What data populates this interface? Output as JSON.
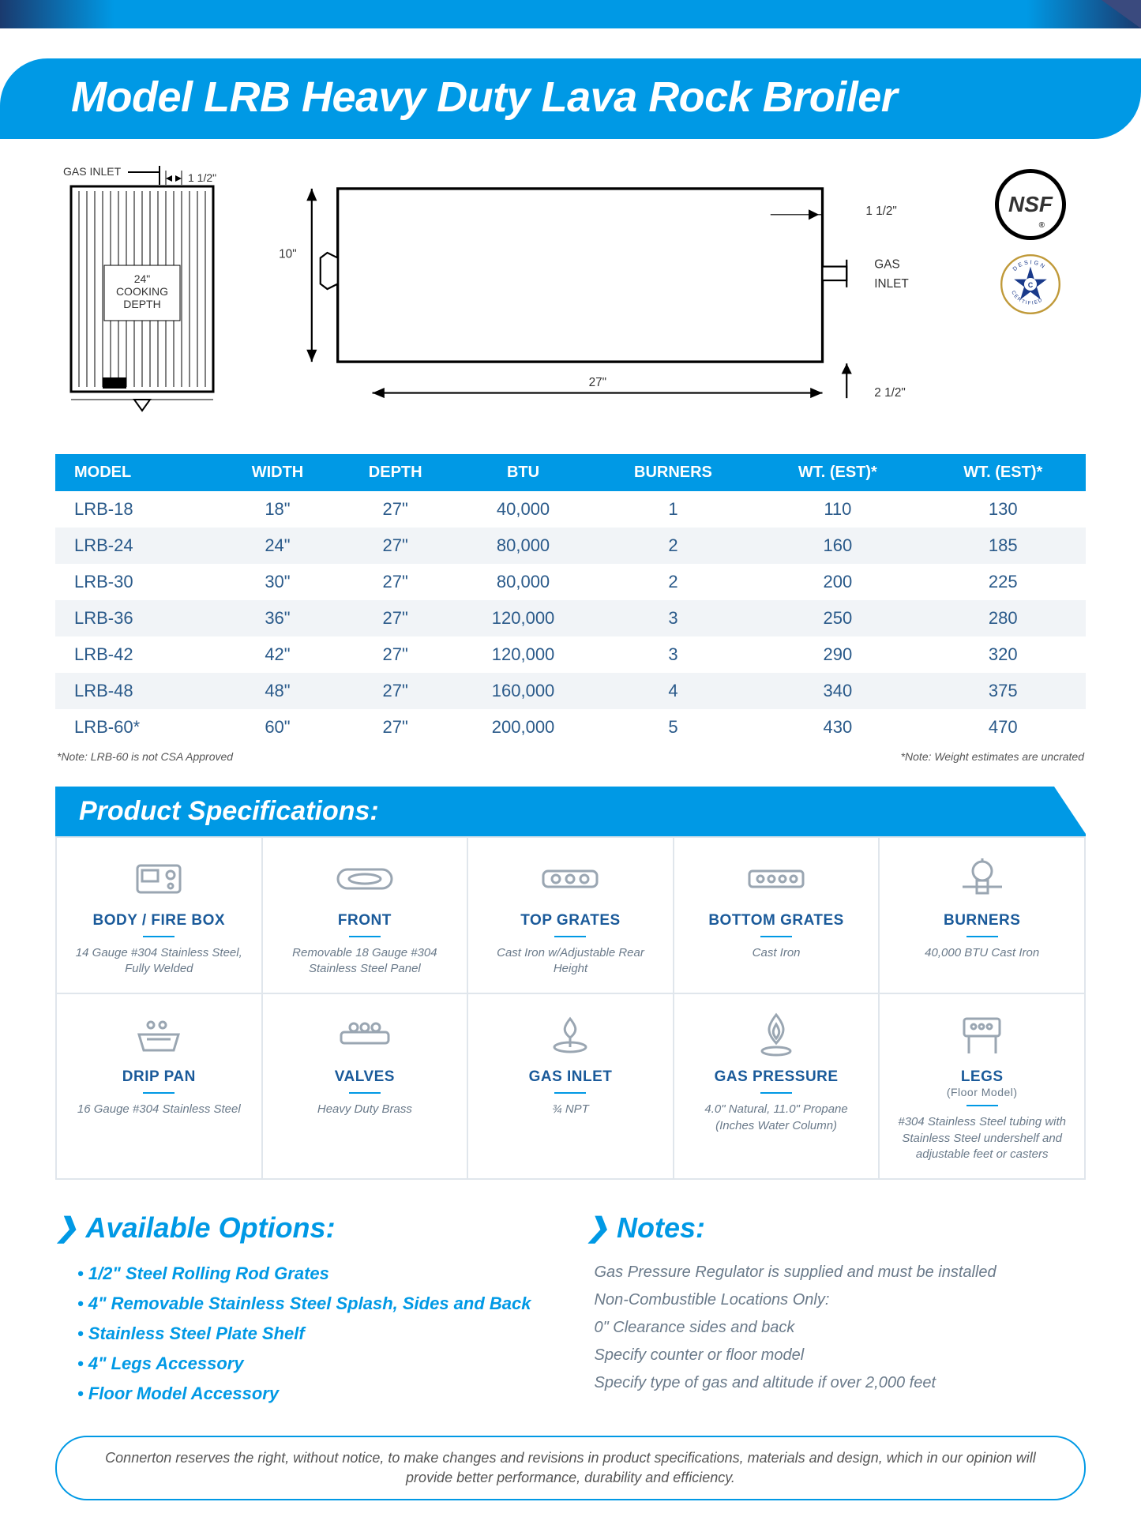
{
  "header": {
    "title": "Model LRB Heavy Duty Lava Rock  Broiler",
    "stripe_color": "#0099e5"
  },
  "diagrams": {
    "top_view": {
      "gas_inlet_label": "GAS INLET",
      "inlet_offset": "1 1/2\"",
      "cooking_depth_label": "24\"\nCOOKING\nDEPTH"
    },
    "side_view": {
      "height_label": "10\"",
      "width_label": "27\"",
      "inlet_top_offset": "1 1/2\"",
      "inlet_right_offset": "2 1/2\"",
      "gas_inlet_label": "GAS\nINLET"
    }
  },
  "cert_logos": {
    "nsf": "NSF",
    "csa_top": "DESIGN",
    "csa_bottom": "CERTIFIED"
  },
  "spec_table": {
    "columns": [
      "MODEL",
      "WIDTH",
      "DEPTH",
      "BTU",
      "BURNERS",
      "WT. (EST)*",
      "WT. (EST)*"
    ],
    "rows": [
      [
        "LRB-18",
        "18\"",
        "27\"",
        "40,000",
        "1",
        "110",
        "130"
      ],
      [
        "LRB-24",
        "24\"",
        "27\"",
        "80,000",
        "2",
        "160",
        "185"
      ],
      [
        "LRB-30",
        "30\"",
        "27\"",
        "80,000",
        "2",
        "200",
        "225"
      ],
      [
        "LRB-36",
        "36\"",
        "27\"",
        "120,000",
        "3",
        "250",
        "280"
      ],
      [
        "LRB-42",
        "42\"",
        "27\"",
        "120,000",
        "3",
        "290",
        "320"
      ],
      [
        "LRB-48",
        "48\"",
        "27\"",
        "160,000",
        "4",
        "340",
        "375"
      ],
      [
        "LRB-60*",
        "60\"",
        "27\"",
        "200,000",
        "5",
        "430",
        "470"
      ]
    ],
    "note_left": "*Note: LRB-60 is not CSA Approved",
    "note_right": "*Note: Weight estimates are uncrated"
  },
  "product_specs": {
    "heading": "Product Specifications:",
    "items": [
      {
        "title": "BODY / FIRE BOX",
        "subtitle": "",
        "desc": "14 Gauge #304 Stainless Steel, Fully Welded",
        "icon": "firebox"
      },
      {
        "title": "FRONT",
        "subtitle": "",
        "desc": "Removable 18 Gauge #304 Stainless Steel Panel",
        "icon": "front"
      },
      {
        "title": "TOP GRATES",
        "subtitle": "",
        "desc": "Cast Iron w/Adjustable Rear Height",
        "icon": "topgrates"
      },
      {
        "title": "BOTTOM GRATES",
        "subtitle": "",
        "desc": "Cast Iron",
        "icon": "bottomgrates"
      },
      {
        "title": "BURNERS",
        "subtitle": "",
        "desc": "40,000 BTU Cast Iron",
        "icon": "burners"
      },
      {
        "title": "DRIP PAN",
        "subtitle": "",
        "desc": "16 Gauge #304 Stainless Steel",
        "icon": "drippan"
      },
      {
        "title": "VALVES",
        "subtitle": "",
        "desc": "Heavy Duty Brass",
        "icon": "valves"
      },
      {
        "title": "GAS INLET",
        "subtitle": "",
        "desc": "¾ NPT",
        "icon": "gasinlet"
      },
      {
        "title": "GAS PRESSURE",
        "subtitle": "",
        "desc": "4.0\" Natural, 11.0\" Propane (Inches Water Column)",
        "icon": "gaspressure"
      },
      {
        "title": "LEGS",
        "subtitle": "(Floor Model)",
        "desc": "#304 Stainless Steel tubing with Stainless Steel undershelf and adjustable feet or casters",
        "icon": "legs"
      }
    ]
  },
  "options": {
    "heading": "Available Options:",
    "items": [
      "1/2\" Steel Rolling Rod Grates",
      "4\" Removable Stainless Steel Splash, Sides and Back",
      "Stainless Steel Plate Shelf",
      "4\" Legs Accessory",
      "Floor Model Accessory"
    ]
  },
  "notes": {
    "heading": "Notes:",
    "items": [
      "Gas Pressure Regulator is supplied and must be installed",
      "Non-Combustible Locations Only:",
      "0\" Clearance sides and back",
      "Specify counter or floor model",
      "Specify type of gas and altitude if over 2,000 feet"
    ]
  },
  "disclaimer": "Connerton reserves the right, without notice, to make changes and revisions in product specifications, materials and design, which in our opinion will provide better performance, durability and efficiency.",
  "colors": {
    "primary": "#0099e5",
    "text_blue": "#1a5a9a",
    "table_blue": "#2a5a8a",
    "grey": "#6a7a8a",
    "row_alt": "#f1f4f7",
    "border": "#e0e6ec"
  }
}
